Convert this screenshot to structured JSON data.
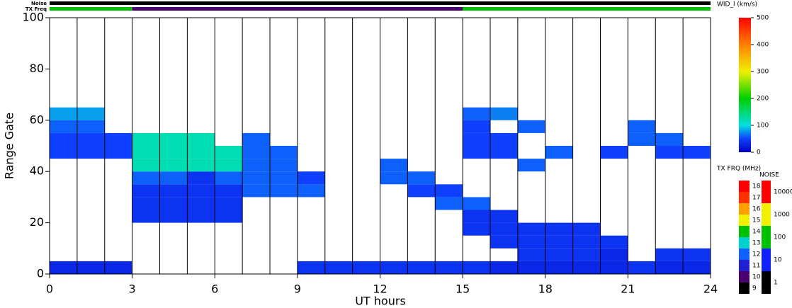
{
  "chart_data": {
    "type": "heatmap",
    "xlabel": "UT hours",
    "ylabel": "Range Gate",
    "xlim": [
      0,
      24
    ],
    "xticks": [
      0,
      3,
      6,
      9,
      12,
      15,
      18,
      21,
      24
    ],
    "xgrid": [
      1,
      2,
      3,
      4,
      5,
      6,
      7,
      8,
      9,
      10,
      11,
      12,
      13,
      14,
      15,
      16,
      17,
      18,
      19,
      20,
      21,
      22,
      23
    ],
    "ylim": [
      0,
      100
    ],
    "yticks": [
      0,
      20,
      40,
      60,
      80,
      100
    ],
    "col_bins": [
      0,
      1,
      2,
      3,
      4,
      5,
      6,
      7,
      8,
      9,
      10,
      11,
      12,
      13,
      14,
      15,
      16,
      17,
      18,
      19,
      20,
      21,
      22,
      23,
      24
    ],
    "row_bins": [
      0,
      5,
      10,
      15,
      20,
      25,
      30,
      35,
      40,
      45,
      50,
      55,
      60,
      65
    ],
    "values": [
      [
        30,
        30,
        30,
        null,
        null,
        null,
        null,
        null,
        null,
        40,
        40,
        40,
        40,
        40,
        40,
        40,
        30,
        30,
        30,
        30,
        30,
        40,
        30,
        30
      ],
      [
        null,
        null,
        null,
        null,
        null,
        null,
        null,
        null,
        null,
        null,
        null,
        null,
        null,
        null,
        null,
        null,
        null,
        40,
        40,
        40,
        30,
        null,
        40,
        40
      ],
      [
        null,
        null,
        null,
        null,
        null,
        null,
        null,
        null,
        null,
        null,
        null,
        null,
        null,
        null,
        null,
        null,
        40,
        40,
        40,
        40,
        40,
        null,
        null,
        null
      ],
      [
        null,
        null,
        null,
        null,
        null,
        null,
        null,
        null,
        null,
        null,
        null,
        null,
        null,
        null,
        null,
        40,
        40,
        40,
        40,
        40,
        null,
        null,
        null,
        null
      ],
      [
        null,
        null,
        null,
        40,
        40,
        40,
        40,
        null,
        null,
        null,
        null,
        null,
        null,
        null,
        null,
        40,
        40,
        null,
        null,
        null,
        null,
        null,
        null,
        null
      ],
      [
        null,
        null,
        null,
        40,
        40,
        40,
        40,
        null,
        null,
        null,
        null,
        null,
        null,
        null,
        60,
        60,
        null,
        null,
        null,
        null,
        null,
        null,
        null,
        null
      ],
      [
        null,
        null,
        null,
        40,
        40,
        40,
        40,
        60,
        60,
        60,
        null,
        null,
        null,
        50,
        50,
        null,
        null,
        null,
        null,
        null,
        null,
        null,
        null,
        null
      ],
      [
        null,
        null,
        null,
        60,
        60,
        40,
        60,
        60,
        60,
        50,
        null,
        null,
        60,
        60,
        null,
        null,
        null,
        null,
        null,
        null,
        null,
        null,
        null,
        null
      ],
      [
        null,
        null,
        null,
        120,
        120,
        120,
        120,
        60,
        60,
        null,
        null,
        null,
        60,
        null,
        null,
        null,
        null,
        60,
        null,
        null,
        null,
        null,
        null,
        null
      ],
      [
        50,
        50,
        50,
        120,
        120,
        120,
        120,
        60,
        60,
        null,
        null,
        null,
        null,
        null,
        null,
        50,
        50,
        null,
        60,
        null,
        50,
        null,
        50,
        50
      ],
      [
        50,
        50,
        50,
        120,
        120,
        120,
        null,
        60,
        null,
        null,
        null,
        null,
        null,
        null,
        null,
        50,
        50,
        null,
        null,
        null,
        null,
        60,
        60,
        null
      ],
      [
        60,
        60,
        null,
        null,
        null,
        null,
        null,
        null,
        null,
        null,
        null,
        null,
        null,
        null,
        null,
        50,
        null,
        60,
        null,
        null,
        null,
        60,
        null,
        null
      ],
      [
        80,
        80,
        null,
        null,
        null,
        null,
        null,
        null,
        null,
        null,
        null,
        null,
        null,
        null,
        null,
        60,
        70,
        null,
        null,
        null,
        null,
        null,
        null,
        null
      ]
    ],
    "colorbar": {
      "title": "WID_l (km/s)",
      "lim": [
        0,
        500
      ],
      "ticks": [
        0,
        100,
        200,
        300,
        400,
        500
      ]
    },
    "tx_freq": {
      "label": "TX Freq",
      "title": "TX FRQ (MHz)",
      "lim": [
        9,
        18
      ],
      "ticks": [
        9,
        10,
        11,
        12,
        13,
        14,
        15,
        16,
        17,
        18
      ],
      "segments": [
        {
          "start": 0,
          "end": 3,
          "value": 14.5
        },
        {
          "start": 3,
          "end": 15,
          "value": 10.5
        },
        {
          "start": 15,
          "end": 24,
          "value": 14.5
        }
      ]
    },
    "noise": {
      "label": "Noise",
      "title": "NOISE",
      "ticks": [
        1,
        10,
        100,
        1000,
        10000
      ]
    }
  }
}
